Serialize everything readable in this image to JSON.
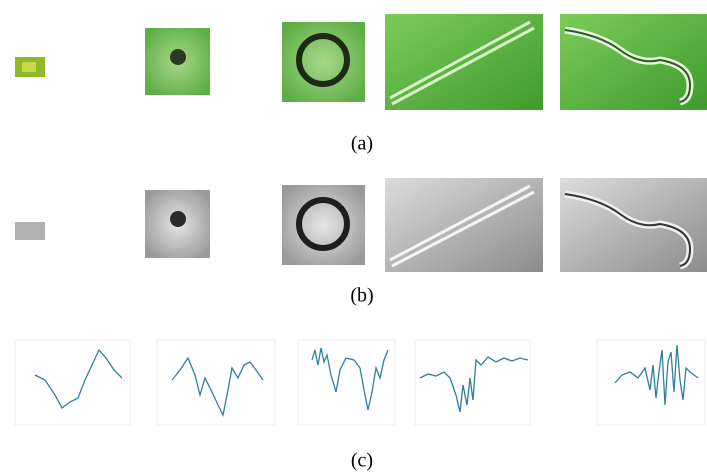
{
  "figure": {
    "panel_labels": [
      "(a)",
      "(b)",
      "(c)"
    ]
  }
}
